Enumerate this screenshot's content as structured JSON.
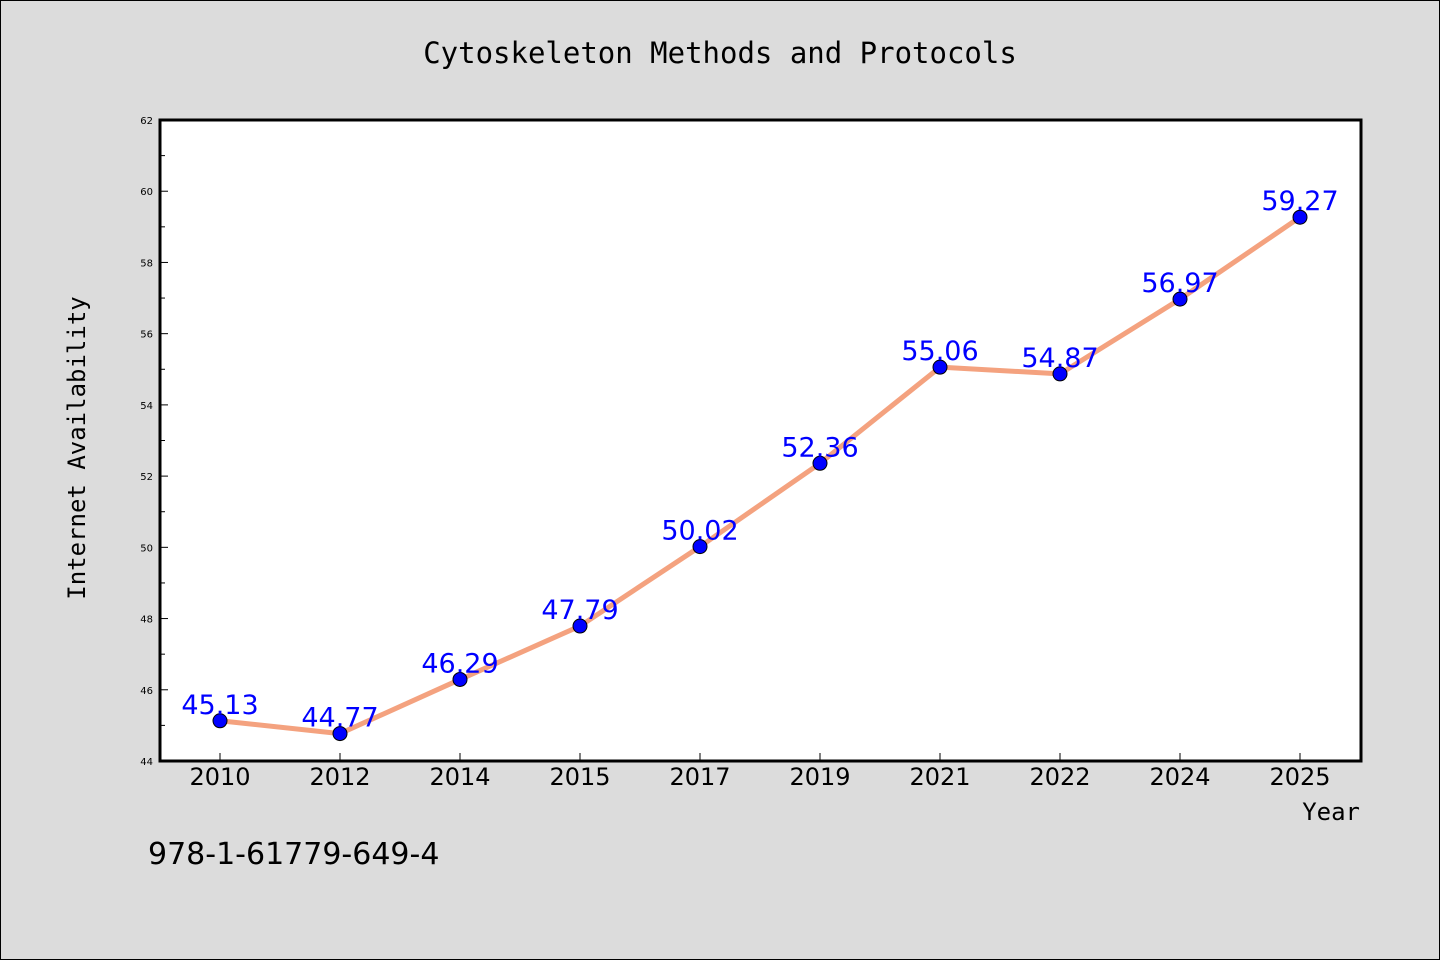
{
  "chart_data": {
    "type": "line",
    "title": "Cytoskeleton Methods and Protocols",
    "xlabel": "Year",
    "ylabel": "Internet Availability",
    "categories": [
      "2010",
      "2012",
      "2014",
      "2015",
      "2017",
      "2019",
      "2021",
      "2022",
      "2024",
      "2025"
    ],
    "series": [
      {
        "values": [
          45.13,
          44.77,
          46.29,
          47.79,
          50.02,
          52.36,
          55.06,
          54.87,
          56.97,
          59.27
        ],
        "labels": [
          "45.13",
          "44.77",
          "46.29",
          "47.79",
          "50.02",
          "52.36",
          "55.06",
          "54.87",
          "56.97",
          "59.27"
        ]
      }
    ],
    "ylim": [
      44,
      62
    ],
    "yticks": [
      "44",
      "46",
      "48",
      "50",
      "52",
      "54",
      "56",
      "58",
      "60",
      "62"
    ],
    "grid": false,
    "legend": "none",
    "line_color": "#f4a27f",
    "marker_color": "#0000ff",
    "label_color": "#0000ff",
    "footnote": "978-1-61779-649-4"
  }
}
